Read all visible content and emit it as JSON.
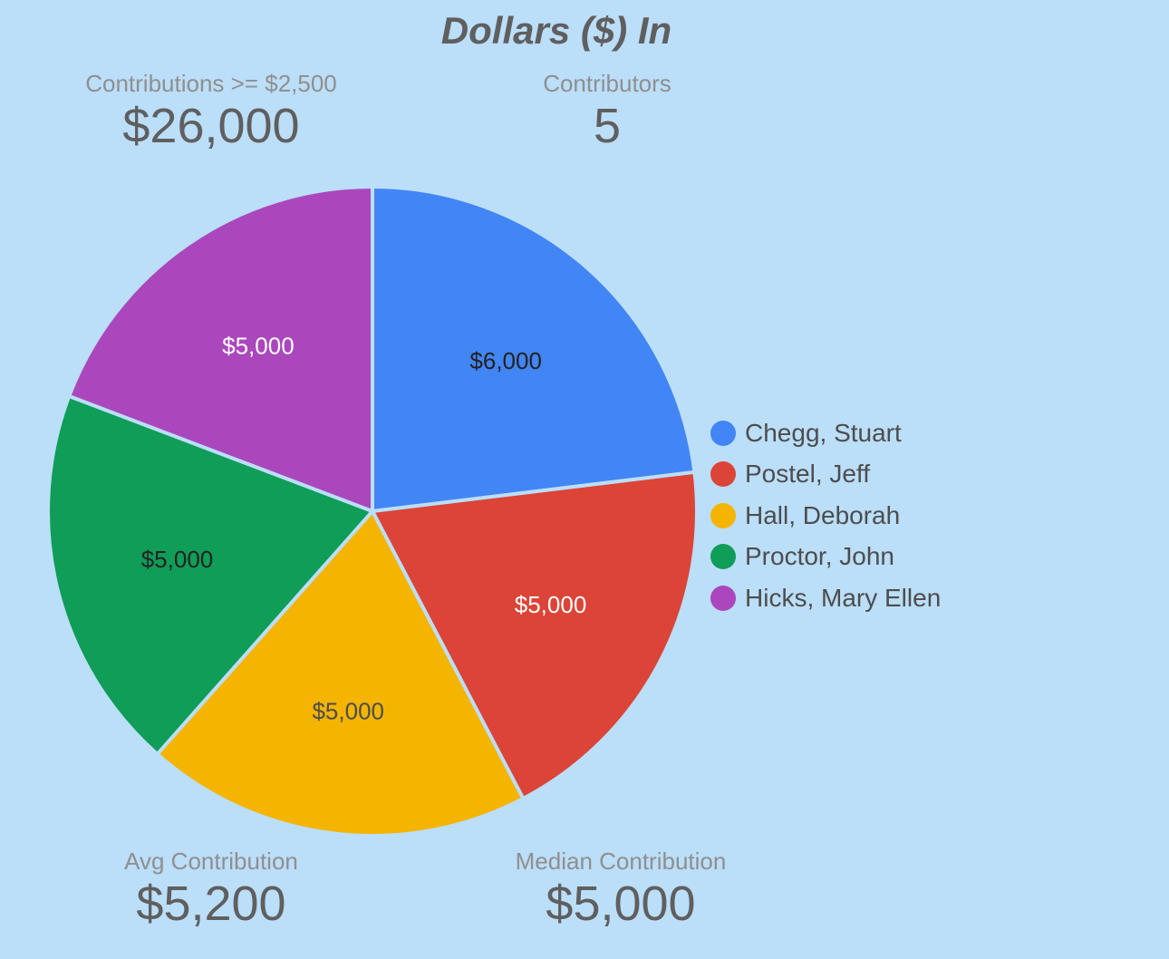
{
  "chart_data": {
    "type": "pie",
    "title": "Dollars ($) In",
    "categories": [
      "Chegg, Stuart",
      "Postel, Jeff",
      "Hall, Deborah",
      "Proctor, John",
      "Hicks, Mary Ellen"
    ],
    "values": [
      6000,
      5000,
      5000,
      5000,
      5000
    ],
    "data_labels": [
      "$6,000",
      "$5,000",
      "$5,000",
      "$5,000",
      "$5,000"
    ],
    "colors": [
      "#4285f4",
      "#db4437",
      "#f4b400",
      "#0f9d58",
      "#ab47bc"
    ],
    "label_colors": [
      "#222222",
      "#ffffff",
      "#4d4d4d",
      "#222222",
      "#ffffff"
    ],
    "legend_position": "right"
  },
  "stats": {
    "contributions_total": {
      "label": "Contributions >= $2,500",
      "value": "$26,000"
    },
    "contributors": {
      "label": "Contributors",
      "value": "5"
    },
    "avg_contribution": {
      "label": "Avg Contribution",
      "value": "$5,200"
    },
    "median_contribution": {
      "label": "Median Contribution",
      "value": "$5,000"
    }
  }
}
